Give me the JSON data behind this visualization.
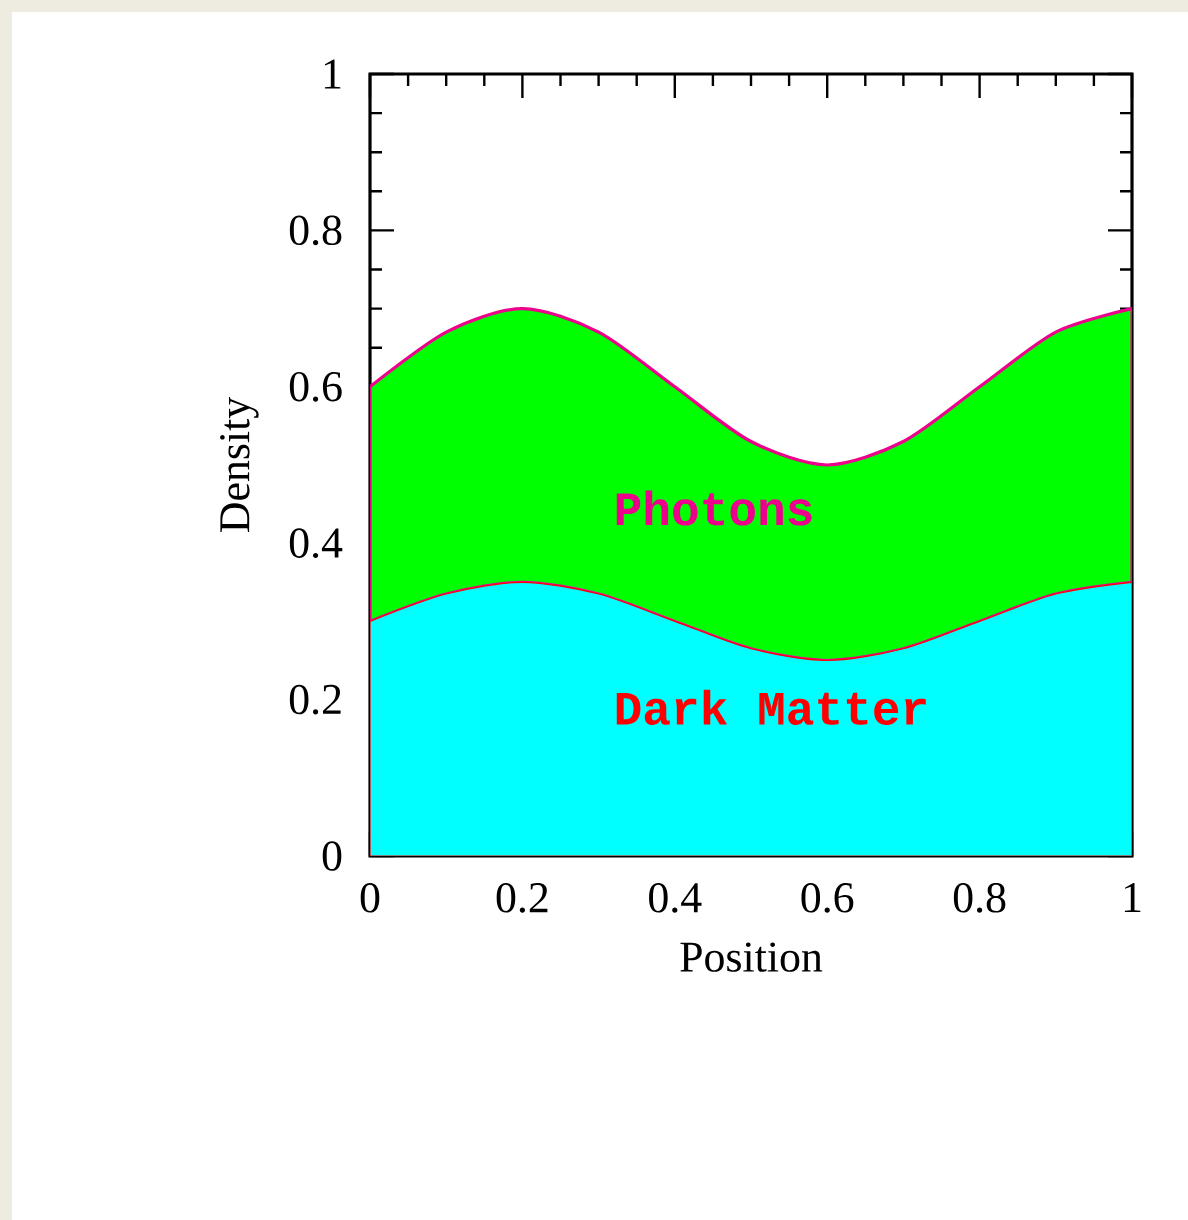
{
  "chart_data": {
    "type": "area",
    "stacked": true,
    "xlabel": "Position",
    "ylabel": "Density",
    "x": [
      0,
      0.1,
      0.2,
      0.3,
      0.4,
      0.5,
      0.6,
      0.7,
      0.8,
      0.9,
      1
    ],
    "series": [
      {
        "name": "Dark Matter",
        "color": "#00ffff",
        "values": [
          0.3,
          0.335,
          0.35,
          0.335,
          0.3,
          0.265,
          0.25,
          0.265,
          0.3,
          0.335,
          0.35
        ]
      },
      {
        "name": "Photons",
        "color": "#00ff00",
        "values": [
          0.3,
          0.335,
          0.35,
          0.335,
          0.3,
          0.265,
          0.25,
          0.265,
          0.3,
          0.335,
          0.35
        ]
      }
    ],
    "xlim": [
      0,
      1
    ],
    "ylim": [
      0,
      1
    ],
    "xticks": [
      0,
      0.2,
      0.4,
      0.6,
      0.8,
      1
    ],
    "yticks": [
      0,
      0.2,
      0.4,
      0.6,
      0.8,
      1
    ]
  }
}
